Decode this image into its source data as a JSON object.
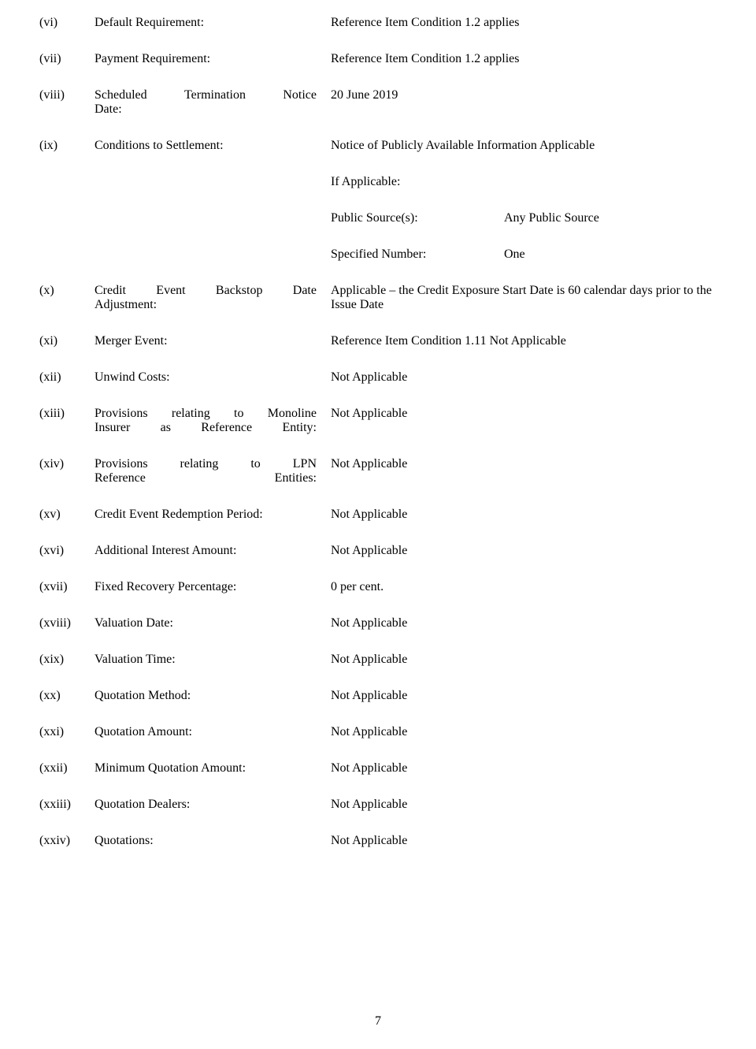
{
  "items": {
    "vi": {
      "num": "(vi)",
      "label": "Default Requirement:",
      "value": "Reference Item Condition 1.2 applies"
    },
    "vii": {
      "num": "(vii)",
      "label": "Payment Requirement:",
      "value": "Reference Item Condition 1.2 applies"
    },
    "viii": {
      "num": "(viii)",
      "label": "Scheduled Termination Notice Date:",
      "value": "20 June 2019"
    },
    "ix": {
      "num": "(ix)",
      "label": "Conditions to Settlement:",
      "value": "Notice of Publicly Available Information Applicable"
    },
    "ix_sub": {
      "if_applicable": "If Applicable:",
      "public_source_label": "Public Source(s):",
      "public_source_value": "Any Public Source",
      "specified_number_label": "Specified Number:",
      "specified_number_value": "One"
    },
    "x": {
      "num": "(x)",
      "label": "Credit Event Backstop Date Adjustment:",
      "value": "Applicable – the Credit Exposure Start Date is 60 calendar days prior to the Issue Date"
    },
    "xi": {
      "num": "(xi)",
      "label": "Merger Event:",
      "value": "Reference Item Condition 1.11 Not Applicable"
    },
    "xii": {
      "num": "(xii)",
      "label": "Unwind Costs:",
      "value": "Not Applicable"
    },
    "xiii": {
      "num": "(xiii)",
      "label": "Provisions relating to Monoline Insurer as Reference Entity:",
      "value": "Not Applicable"
    },
    "xiv": {
      "num": "(xiv)",
      "label": "Provisions relating to LPN Reference Entities:",
      "value": "Not Applicable"
    },
    "xv": {
      "num": "(xv)",
      "label": "Credit Event Redemption Period:",
      "value": "Not Applicable"
    },
    "xvi": {
      "num": "(xvi)",
      "label": "Additional Interest Amount:",
      "value": "Not Applicable"
    },
    "xvii": {
      "num": "(xvii)",
      "label": "Fixed Recovery Percentage:",
      "value": "0 per cent."
    },
    "xviii": {
      "num": "(xviii)",
      "label": "Valuation Date:",
      "value": "Not Applicable"
    },
    "xix": {
      "num": "(xix)",
      "label": "Valuation Time:",
      "value": "Not Applicable"
    },
    "xx": {
      "num": "(xx)",
      "label": "Quotation Method:",
      "value": "Not Applicable"
    },
    "xxi": {
      "num": "(xxi)",
      "label": "Quotation Amount:",
      "value": "Not Applicable"
    },
    "xxii": {
      "num": "(xxii)",
      "label": "Minimum Quotation Amount:",
      "value": "Not Applicable"
    },
    "xxiii": {
      "num": "(xxiii)",
      "label": "Quotation Dealers:",
      "value": "Not Applicable"
    },
    "xxiv": {
      "num": "(xxiv)",
      "label": "Quotations:",
      "value": "Not Applicable"
    }
  },
  "page_number": "7",
  "text_color": "#000000",
  "background_color": "#ffffff",
  "font_family": "Times New Roman",
  "font_size_pt": 12
}
